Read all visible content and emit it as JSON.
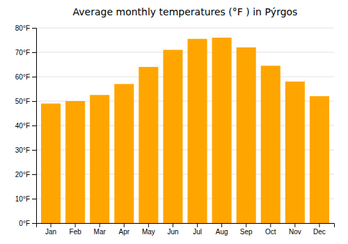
{
  "chart_data": {
    "type": "bar",
    "title": "Average monthly temperatures (°F ) in Pýrgos",
    "categories": [
      "Jan",
      "Feb",
      "Mar",
      "Apr",
      "May",
      "Jun",
      "Jul",
      "Aug",
      "Sep",
      "Oct",
      "Nov",
      "Dec"
    ],
    "values": [
      49,
      50,
      52.5,
      57,
      64,
      71,
      75.5,
      76,
      72,
      64.5,
      58,
      52
    ],
    "color": "#FFA500",
    "ylim": [
      0,
      80
    ],
    "yticks": [
      {
        "value": 0,
        "label": "0°F"
      },
      {
        "value": 10,
        "label": "10°F"
      },
      {
        "value": 20,
        "label": "20°F"
      },
      {
        "value": 30,
        "label": "30°F"
      },
      {
        "value": 40,
        "label": "40°F"
      },
      {
        "value": 50,
        "label": "50°F"
      },
      {
        "value": 60,
        "label": "60°F"
      },
      {
        "value": 70,
        "label": "70°F"
      },
      {
        "value": 80,
        "label": "80°F"
      }
    ],
    "grid": true
  }
}
